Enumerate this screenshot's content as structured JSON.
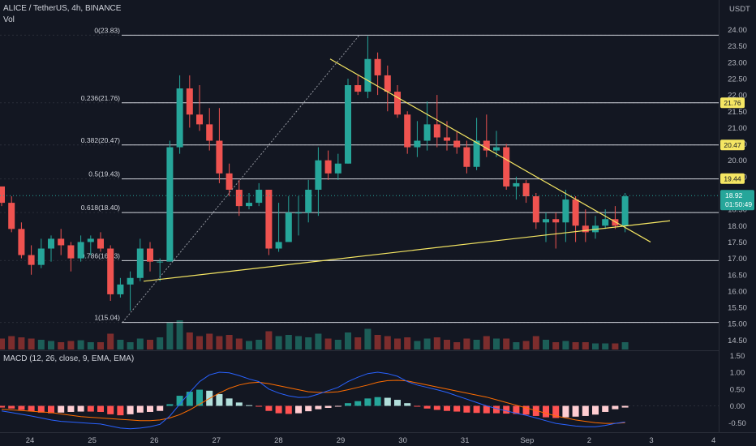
{
  "header": {
    "symbol": "ALICE / TetherUS, 4h, BINANCE",
    "vol_label": "Vol",
    "currency": "USDT",
    "macd_label": "MACD (12, 26, close, 9, EMA, EMA)"
  },
  "colors": {
    "background": "#131722",
    "up": "#26a69a",
    "down": "#ef5350",
    "trendline": "#f5e663",
    "fib_line": "#d1d4dc",
    "macd_line": "#2962ff",
    "signal_line": "#ff6d00",
    "last_price_tag": "#26a69a"
  },
  "price_axis": {
    "ticks": [
      "24.00",
      "23.50",
      "23.00",
      "22.50",
      "22.00",
      "21.50",
      "21.00",
      "20.50",
      "20.00",
      "19.50",
      "19.00",
      "18.50",
      "18.00",
      "17.50",
      "17.00",
      "16.50",
      "16.00",
      "15.50",
      "15.00",
      "14.50"
    ],
    "tags": [
      {
        "label": "21.76",
        "kind": "fib"
      },
      {
        "label": "20.47",
        "kind": "fib"
      },
      {
        "label": "19.44",
        "kind": "fib"
      }
    ],
    "last_price": "18.92",
    "countdown": "01:50:49"
  },
  "macd_axis": {
    "ticks": [
      "1.50",
      "1.00",
      "0.50",
      "0.00",
      "-0.50"
    ]
  },
  "time_axis": {
    "labels": [
      "24",
      "25",
      "26",
      "27",
      "28",
      "29",
      "30",
      "31",
      "Sep",
      "2",
      "3",
      "4"
    ]
  },
  "fib_levels": [
    {
      "label": "0(23.83)",
      "value": 23.83
    },
    {
      "label": "0.236(21.76)",
      "value": 21.76
    },
    {
      "label": "0.382(20.47)",
      "value": 20.47
    },
    {
      "label": "0.5(19.43)",
      "value": 19.43
    },
    {
      "label": "0.618(18.40)",
      "value": 18.4
    },
    {
      "label": "0.786(16.93)",
      "value": 16.93
    },
    {
      "label": "1(15.04)",
      "value": 15.04
    }
  ],
  "chart_data": {
    "type": "candlestick",
    "title": "ALICE / TetherUS, 4h, BINANCE",
    "x_labels": [
      "24",
      "25",
      "26",
      "27",
      "28",
      "29",
      "30",
      "31",
      "Sep",
      "2",
      "3",
      "4"
    ],
    "ylim": [
      14.3,
      24.45
    ],
    "candles": [
      [
        19.2,
        18.7,
        19.2,
        18.6
      ],
      [
        18.7,
        17.9,
        18.9,
        17.8
      ],
      [
        17.9,
        17.1,
        18.1,
        17.0
      ],
      [
        17.1,
        16.8,
        17.4,
        16.5
      ],
      [
        16.8,
        17.3,
        17.6,
        16.7
      ],
      [
        17.3,
        17.6,
        17.7,
        16.9
      ],
      [
        17.6,
        17.4,
        17.9,
        17.1
      ],
      [
        17.4,
        17.0,
        17.5,
        16.6
      ],
      [
        17.0,
        17.5,
        17.7,
        16.9
      ],
      [
        17.5,
        17.6,
        17.7,
        17.1
      ],
      [
        17.6,
        17.3,
        17.8,
        17.2
      ],
      [
        17.3,
        15.9,
        17.4,
        15.7
      ],
      [
        15.9,
        16.2,
        16.4,
        15.8
      ],
      [
        16.2,
        16.4,
        16.6,
        15.4
      ],
      [
        16.4,
        17.3,
        17.6,
        16.3
      ],
      [
        17.3,
        16.9,
        17.5,
        16.6
      ],
      [
        16.9,
        16.9,
        17.0,
        16.3
      ],
      [
        16.9,
        20.4,
        20.6,
        16.9
      ],
      [
        20.4,
        22.2,
        22.6,
        20.2
      ],
      [
        22.2,
        21.4,
        22.6,
        21.0
      ],
      [
        21.4,
        21.1,
        22.3,
        20.9
      ],
      [
        21.1,
        20.6,
        21.6,
        20.3
      ],
      [
        20.6,
        19.6,
        21.6,
        19.3
      ],
      [
        19.6,
        19.1,
        19.9,
        18.9
      ],
      [
        19.1,
        18.6,
        19.4,
        18.3
      ],
      [
        18.6,
        18.7,
        19.0,
        18.5
      ],
      [
        18.7,
        19.1,
        19.3,
        18.6
      ],
      [
        19.1,
        17.3,
        19.1,
        17.1
      ],
      [
        17.3,
        17.5,
        18.7,
        17.2
      ],
      [
        17.5,
        18.4,
        18.9,
        17.8
      ],
      [
        18.4,
        18.4,
        18.9,
        17.7
      ],
      [
        18.4,
        19.1,
        19.4,
        18.1
      ],
      [
        19.1,
        20.0,
        20.4,
        18.3
      ],
      [
        20.0,
        19.6,
        20.3,
        19.4
      ],
      [
        19.6,
        19.9,
        20.2,
        19.4
      ],
      [
        19.9,
        22.3,
        22.5,
        19.9
      ],
      [
        22.3,
        22.1,
        22.6,
        22.0
      ],
      [
        22.1,
        23.1,
        23.8,
        21.9
      ],
      [
        23.1,
        22.6,
        23.3,
        22.0
      ],
      [
        22.6,
        22.1,
        22.9,
        21.5
      ],
      [
        22.1,
        21.4,
        22.3,
        21.3
      ],
      [
        21.4,
        20.4,
        21.5,
        20.2
      ],
      [
        20.4,
        20.6,
        21.2,
        20.1
      ],
      [
        20.6,
        21.1,
        21.8,
        20.3
      ],
      [
        21.1,
        20.7,
        22.0,
        20.4
      ],
      [
        20.7,
        20.6,
        21.2,
        20.3
      ],
      [
        20.6,
        20.4,
        20.9,
        20.2
      ],
      [
        20.4,
        19.8,
        20.6,
        19.6
      ],
      [
        19.8,
        20.6,
        21.3,
        19.7
      ],
      [
        20.6,
        20.3,
        21.4,
        20.1
      ],
      [
        20.3,
        20.4,
        20.9,
        20.1
      ],
      [
        20.4,
        19.2,
        20.5,
        19.1
      ],
      [
        19.2,
        19.3,
        19.5,
        18.8
      ],
      [
        19.3,
        18.9,
        19.4,
        18.7
      ],
      [
        18.9,
        18.1,
        19.0,
        17.9
      ],
      [
        18.1,
        18.2,
        18.4,
        17.5
      ],
      [
        18.2,
        18.1,
        18.4,
        17.3
      ],
      [
        18.1,
        18.8,
        19.1,
        17.5
      ],
      [
        18.8,
        18.0,
        18.9,
        17.5
      ],
      [
        18.0,
        17.8,
        18.5,
        17.5
      ],
      [
        17.8,
        18.0,
        18.3,
        17.6
      ],
      [
        18.0,
        18.2,
        18.5,
        17.9
      ],
      [
        18.2,
        18.0,
        18.6,
        17.9
      ],
      [
        18.0,
        18.9,
        19.0,
        17.8
      ]
    ],
    "volume": [
      0.45,
      0.55,
      0.5,
      0.45,
      0.4,
      0.35,
      0.3,
      0.35,
      0.38,
      0.3,
      0.3,
      0.65,
      0.4,
      0.3,
      0.45,
      0.4,
      0.5,
      1.1,
      1.2,
      0.7,
      0.55,
      0.65,
      0.55,
      0.6,
      0.45,
      0.35,
      0.4,
      0.75,
      0.55,
      0.6,
      0.55,
      0.5,
      0.65,
      0.45,
      0.4,
      0.7,
      0.5,
      0.85,
      0.6,
      0.55,
      0.45,
      0.5,
      0.35,
      0.45,
      0.5,
      0.4,
      0.3,
      0.45,
      0.4,
      0.55,
      0.45,
      0.45,
      0.3,
      0.35,
      0.55,
      0.4,
      0.3,
      0.35,
      0.3,
      0.3,
      0.25,
      0.25,
      0.25,
      0.3
    ],
    "macd_hist": [
      -0.05,
      -0.08,
      -0.12,
      -0.16,
      -0.2,
      -0.22,
      -0.2,
      -0.18,
      -0.17,
      -0.17,
      -0.18,
      -0.25,
      -0.28,
      -0.25,
      -0.2,
      -0.18,
      -0.15,
      0.05,
      0.3,
      0.42,
      0.48,
      0.45,
      0.35,
      0.22,
      0.1,
      0.02,
      -0.02,
      -0.15,
      -0.22,
      -0.24,
      -0.22,
      -0.16,
      -0.1,
      -0.06,
      -0.02,
      0.08,
      0.14,
      0.22,
      0.26,
      0.24,
      0.18,
      0.08,
      -0.02,
      -0.08,
      -0.12,
      -0.15,
      -0.17,
      -0.2,
      -0.21,
      -0.22,
      -0.22,
      -0.23,
      -0.24,
      -0.26,
      -0.3,
      -0.34,
      -0.36,
      -0.34,
      -0.32,
      -0.3,
      -0.26,
      -0.18,
      -0.1,
      -0.05
    ],
    "macd_line": [
      -0.15,
      -0.2,
      -0.25,
      -0.3,
      -0.36,
      -0.42,
      -0.46,
      -0.48,
      -0.5,
      -0.52,
      -0.54,
      -0.6,
      -0.66,
      -0.68,
      -0.66,
      -0.62,
      -0.55,
      -0.3,
      0.05,
      0.4,
      0.72,
      0.92,
      1.0,
      0.98,
      0.9,
      0.8,
      0.72,
      0.5,
      0.38,
      0.3,
      0.25,
      0.26,
      0.35,
      0.45,
      0.55,
      0.72,
      0.85,
      0.96,
      1.0,
      0.96,
      0.88,
      0.72,
      0.62,
      0.55,
      0.48,
      0.4,
      0.3,
      0.2,
      0.1,
      0.0,
      -0.08,
      -0.15,
      -0.22,
      -0.28,
      -0.36,
      -0.44,
      -0.52,
      -0.56,
      -0.6,
      -0.62,
      -0.62,
      -0.58,
      -0.52,
      -0.48
    ],
    "signal_line": [
      -0.1,
      -0.12,
      -0.14,
      -0.16,
      -0.18,
      -0.2,
      -0.24,
      -0.28,
      -0.32,
      -0.34,
      -0.36,
      -0.38,
      -0.4,
      -0.42,
      -0.44,
      -0.44,
      -0.42,
      -0.36,
      -0.26,
      -0.12,
      0.05,
      0.22,
      0.38,
      0.52,
      0.62,
      0.68,
      0.7,
      0.66,
      0.6,
      0.54,
      0.48,
      0.42,
      0.4,
      0.4,
      0.42,
      0.48,
      0.55,
      0.62,
      0.7,
      0.75,
      0.76,
      0.74,
      0.68,
      0.62,
      0.56,
      0.5,
      0.44,
      0.38,
      0.32,
      0.26,
      0.18,
      0.1,
      0.02,
      -0.06,
      -0.14,
      -0.22,
      -0.3,
      -0.36,
      -0.42,
      -0.46,
      -0.5,
      -0.52,
      -0.52,
      -0.5
    ],
    "macd_ylim": [
      -0.75,
      1.65
    ]
  }
}
